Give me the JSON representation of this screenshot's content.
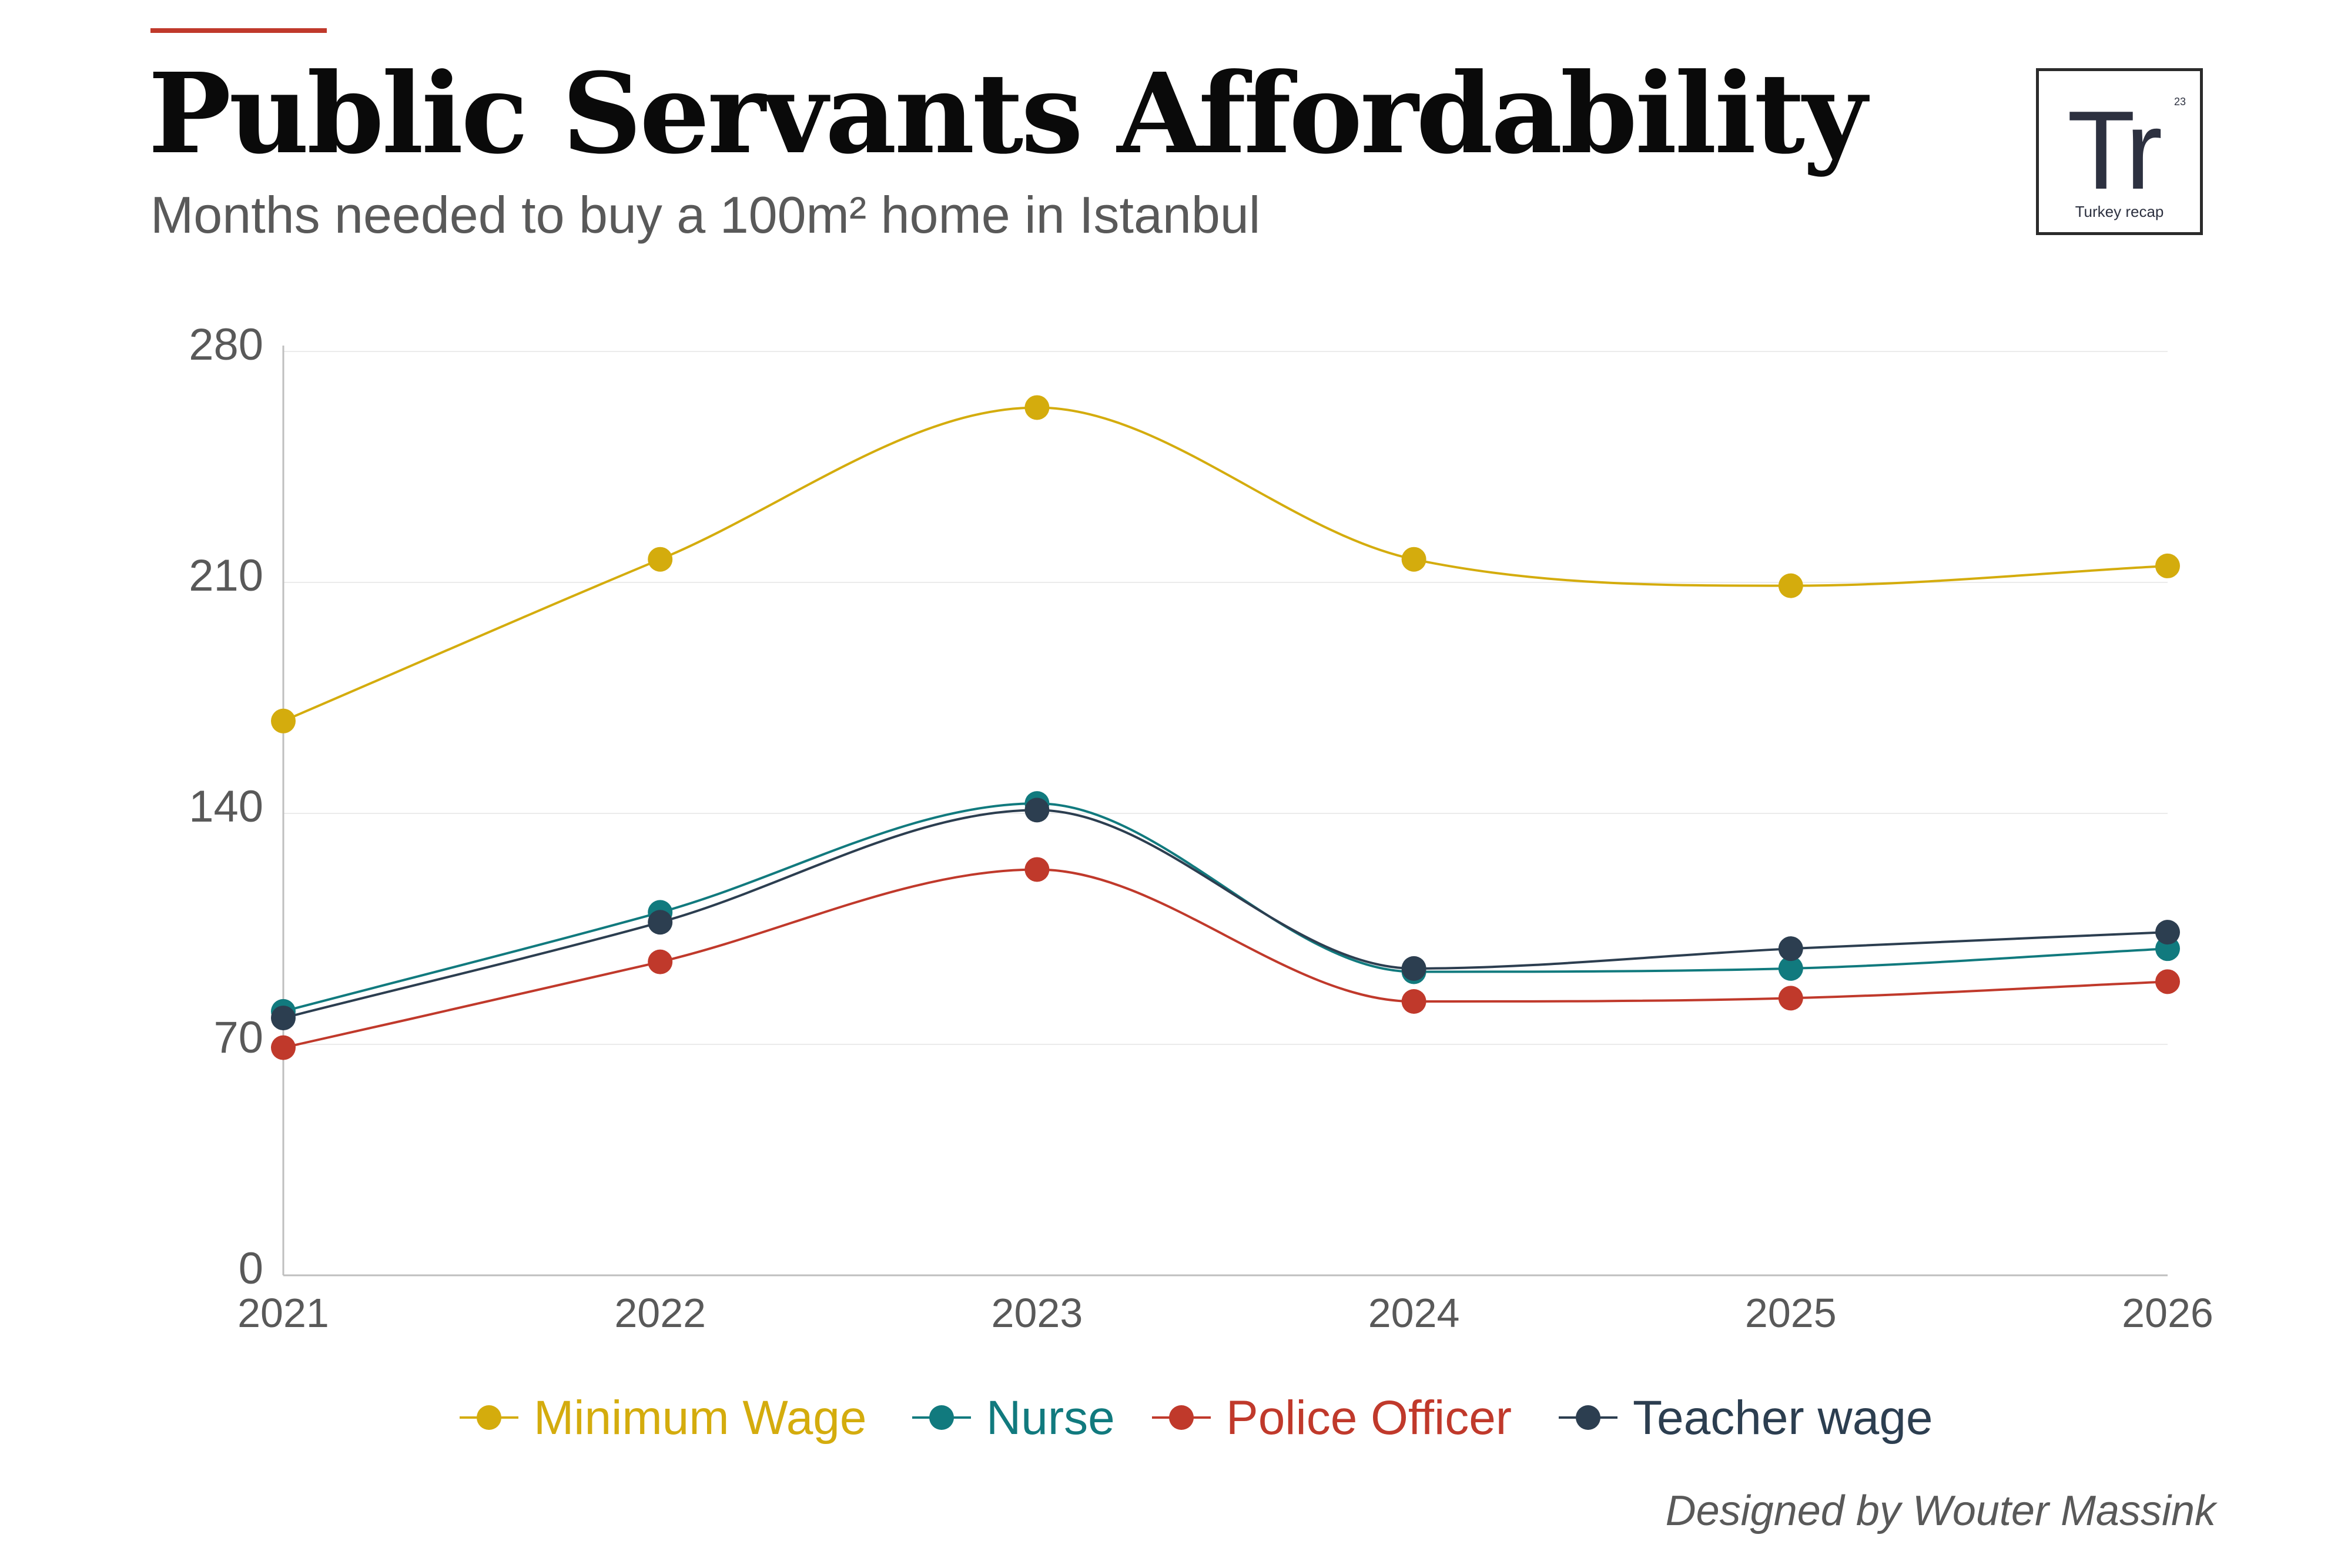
{
  "header": {
    "title": "Public Servants Affordability",
    "subtitle": "Months needed to buy a 100m² home in Istanbul"
  },
  "logo": {
    "mark": "Tr",
    "number": "23",
    "name": "Turkey recap"
  },
  "footer": {
    "credit": "Designed by Wouter Massink"
  },
  "chart_data": {
    "type": "line",
    "title": "Public Servants Affordability",
    "subtitle": "Months needed to buy a 100m² home in Istanbul",
    "xlabel": "",
    "ylabel": "",
    "x": [
      "2021",
      "2022",
      "2023",
      "2024",
      "2025",
      "2026"
    ],
    "ylim": [
      0,
      280
    ],
    "yticks": [
      0,
      70,
      140,
      210,
      280
    ],
    "grid": true,
    "legend_position": "bottom",
    "series": [
      {
        "name": "Minimum Wage",
        "color": "#d4ac0d",
        "values": [
          168,
          217,
          263,
          217,
          209,
          215
        ]
      },
      {
        "name": "Nurse",
        "color": "#117a7e",
        "values": [
          80,
          110,
          143,
          92,
          93,
          99
        ]
      },
      {
        "name": "Police Officer",
        "color": "#c0392b",
        "values": [
          69,
          95,
          123,
          83,
          84,
          89
        ]
      },
      {
        "name": "Teacher wage",
        "color": "#2c3e50",
        "values": [
          78,
          107,
          141,
          93,
          99,
          104
        ]
      }
    ]
  }
}
